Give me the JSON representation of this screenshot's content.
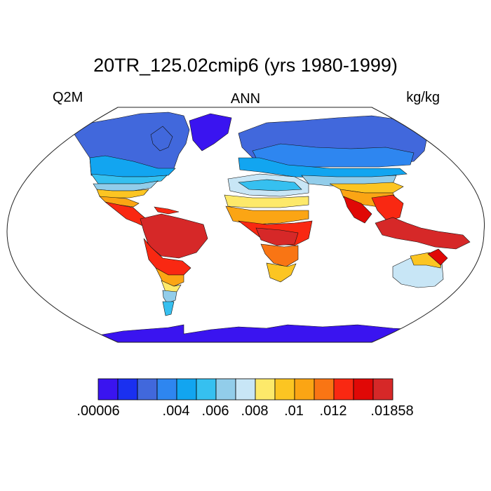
{
  "title": "20TR_125.02cmip6 (yrs 1980-1999)",
  "left_label": "Q2M",
  "center_label": "ANN",
  "right_label": "kg/kg",
  "colorbar": {
    "colors": [
      "#3a14f0",
      "#1a30f0",
      "#4168dc",
      "#2e86f0",
      "#12a5f0",
      "#36c0f0",
      "#92cdea",
      "#c8e6f6",
      "#fde96a",
      "#fcc522",
      "#fba514",
      "#f97514",
      "#f92812",
      "#e00806",
      "#d62828"
    ],
    "ticks": [
      {
        "label": ".00006",
        "boundary": 0
      },
      {
        "label": ".004",
        "boundary": 3
      },
      {
        "label": ".006",
        "boundary": 4
      },
      {
        "label": ".008",
        "boundary": 5
      },
      {
        "label": ".01",
        "boundary": 6
      },
      {
        "label": ".012",
        "boundary": 7
      },
      {
        "label": ".01858",
        "boundary": 9
      }
    ]
  }
}
